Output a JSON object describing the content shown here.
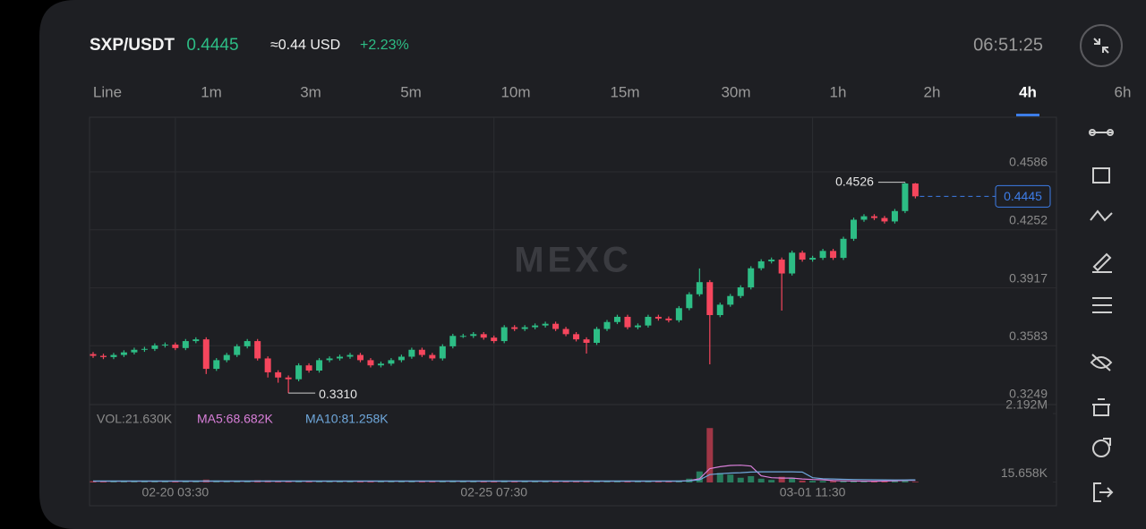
{
  "header": {
    "pair": "SXP/USDT",
    "price": "0.4445",
    "usd": "≈0.44 USD",
    "change": "+2.23%",
    "time": "06:51:25"
  },
  "timeframes": [
    "Line",
    "1m",
    "3m",
    "5m",
    "10m",
    "15m",
    "30m",
    "1h",
    "2h",
    "4h",
    "6h"
  ],
  "active_timeframe": 9,
  "watermark": "MEXC",
  "chart_data": {
    "type": "candlestick",
    "up_color": "#2dbd85",
    "down_color": "#f6465d",
    "ylim": [
      0.3249,
      0.4901
    ],
    "yticks": [
      0.4586,
      0.4252,
      0.3917,
      0.3583,
      0.3249
    ],
    "grid": true,
    "high_label": "0.4526",
    "low_label": "0.3310",
    "x": [
      null,
      null,
      null,
      null,
      null,
      null,
      null,
      null,
      "02-20 03:30",
      null,
      null,
      null,
      null,
      null,
      null,
      null,
      null,
      null,
      null,
      null,
      null,
      null,
      null,
      null,
      null,
      null,
      null,
      null,
      null,
      null,
      null,
      null,
      null,
      null,
      null,
      null,
      null,
      null,
      null,
      "02-25 07:30",
      null,
      null,
      null,
      null,
      null,
      null,
      null,
      null,
      null,
      null,
      null,
      null,
      null,
      null,
      null,
      null,
      null,
      null,
      null,
      null,
      null,
      null,
      null,
      null,
      null,
      null,
      null,
      null,
      null,
      null,
      "03-01 11:30",
      null,
      null,
      null,
      null,
      null,
      null,
      null,
      null,
      null,
      null
    ],
    "open": [
      0.3535,
      0.3525,
      0.3518,
      0.353,
      0.3545,
      0.356,
      0.3565,
      0.3585,
      0.359,
      0.357,
      0.361,
      0.362,
      0.345,
      0.35,
      0.353,
      0.358,
      0.361,
      0.351,
      0.343,
      0.34,
      0.339,
      0.347,
      0.344,
      0.35,
      0.351,
      0.352,
      0.353,
      0.35,
      0.347,
      0.348,
      0.35,
      0.352,
      0.356,
      0.353,
      0.351,
      0.358,
      0.364,
      0.364,
      0.365,
      0.363,
      0.361,
      0.369,
      0.368,
      0.369,
      0.37,
      0.371,
      0.368,
      0.365,
      0.362,
      0.36,
      0.368,
      0.372,
      0.375,
      0.369,
      0.37,
      0.375,
      0.374,
      0.373,
      0.38,
      0.388,
      0.395,
      0.376,
      0.382,
      0.387,
      0.392,
      0.403,
      0.407,
      0.408,
      0.4,
      0.412,
      0.408,
      0.409,
      0.413,
      0.409,
      0.42,
      0.431,
      0.433,
      0.432,
      0.43,
      0.436,
      0.4519
    ],
    "high": [
      0.3547,
      0.3537,
      0.3542,
      0.3557,
      0.3572,
      0.3577,
      0.3597,
      0.3602,
      0.3602,
      0.3622,
      0.3632,
      0.3632,
      0.3512,
      0.3542,
      0.3592,
      0.3622,
      0.3622,
      0.3522,
      0.3442,
      0.3412,
      0.3482,
      0.3482,
      0.3512,
      0.3522,
      0.3532,
      0.3542,
      0.3542,
      0.3512,
      0.3492,
      0.3512,
      0.3532,
      0.3572,
      0.3572,
      0.3542,
      0.3592,
      0.3652,
      0.3652,
      0.3662,
      0.3662,
      0.3642,
      0.3702,
      0.3702,
      0.3702,
      0.3712,
      0.3722,
      0.3722,
      0.3692,
      0.3662,
      0.3632,
      0.3692,
      0.3732,
      0.3762,
      0.3762,
      0.3712,
      0.3762,
      0.3762,
      0.3752,
      0.3812,
      0.3892,
      0.4029,
      0.3962,
      0.3832,
      0.3882,
      0.3932,
      0.4042,
      0.4082,
      0.4092,
      0.4092,
      0.4132,
      0.4132,
      0.4102,
      0.4142,
      0.4142,
      0.4212,
      0.4322,
      0.4342,
      0.4342,
      0.4332,
      0.4372,
      0.4526,
      0.4522
    ],
    "low": [
      0.3513,
      0.3506,
      0.3506,
      0.3518,
      0.3533,
      0.3548,
      0.3553,
      0.3573,
      0.3558,
      0.3558,
      0.3598,
      0.342,
      0.3438,
      0.3488,
      0.3518,
      0.3568,
      0.3498,
      0.34,
      0.337,
      0.331,
      0.3378,
      0.3428,
      0.3428,
      0.3488,
      0.3498,
      0.3508,
      0.3488,
      0.3458,
      0.3458,
      0.3468,
      0.3488,
      0.3508,
      0.3518,
      0.3498,
      0.3498,
      0.3568,
      0.3628,
      0.3628,
      0.3618,
      0.3598,
      0.3598,
      0.3668,
      0.3668,
      0.3678,
      0.3688,
      0.3668,
      0.3638,
      0.3608,
      0.3538,
      0.3588,
      0.3668,
      0.3708,
      0.3678,
      0.3678,
      0.3688,
      0.3728,
      0.3718,
      0.3718,
      0.3788,
      0.3868,
      0.3476,
      0.3748,
      0.3808,
      0.3858,
      0.3908,
      0.4018,
      0.4058,
      0.3786,
      0.3988,
      0.4068,
      0.4068,
      0.4078,
      0.4078,
      0.4078,
      0.4188,
      0.4298,
      0.4308,
      0.4288,
      0.4288,
      0.4348,
      0.4433
    ],
    "close": [
      0.3525,
      0.3518,
      0.353,
      0.3545,
      0.356,
      0.3565,
      0.3585,
      0.359,
      0.357,
      0.361,
      0.362,
      0.345,
      0.35,
      0.353,
      0.358,
      0.361,
      0.351,
      0.343,
      0.34,
      0.339,
      0.347,
      0.344,
      0.35,
      0.351,
      0.352,
      0.353,
      0.35,
      0.347,
      0.348,
      0.35,
      0.352,
      0.356,
      0.353,
      0.351,
      0.358,
      0.364,
      0.364,
      0.365,
      0.363,
      0.361,
      0.369,
      0.368,
      0.369,
      0.37,
      0.371,
      0.368,
      0.365,
      0.362,
      0.36,
      0.368,
      0.372,
      0.375,
      0.369,
      0.37,
      0.375,
      0.374,
      0.373,
      0.38,
      0.388,
      0.395,
      0.376,
      0.382,
      0.387,
      0.392,
      0.403,
      0.407,
      0.408,
      0.4,
      0.412,
      0.408,
      0.409,
      0.413,
      0.409,
      0.42,
      0.431,
      0.433,
      0.432,
      0.43,
      0.436,
      0.4519,
      0.4445
    ],
    "volume_title": "VOL:21.630K",
    "ma5_title": "MA5:68.682K",
    "ma10_title": "MA10:81.258K",
    "ma5_color": "#d97fd9",
    "ma10_color": "#6fa8dc",
    "vylim": [
      0,
      2192000
    ],
    "vyticks": [
      {
        "value": 2192000,
        "label": "2.192M"
      },
      {
        "value": 15658,
        "label": "15.658K"
      }
    ],
    "volume": [
      40000,
      35000,
      30000,
      45000,
      50000,
      38000,
      42000,
      36000,
      55000,
      48000,
      40000,
      90000,
      60000,
      45000,
      40000,
      35000,
      70000,
      65000,
      50000,
      40000,
      60000,
      45000,
      38000,
      35000,
      30000,
      32000,
      40000,
      45000,
      38000,
      36000,
      42000,
      50000,
      40000,
      38000,
      55000,
      60000,
      40000,
      35000,
      38000,
      42000,
      60000,
      40000,
      35000,
      32000,
      30000,
      42000,
      48000,
      52000,
      60000,
      55000,
      45000,
      48000,
      52000,
      38000,
      40000,
      50000,
      42000,
      60000,
      120000,
      350000,
      1730000,
      300000,
      250000,
      150000,
      200000,
      120000,
      80000,
      180000,
      150000,
      60000,
      50000,
      45000,
      40000,
      55000,
      60000,
      45000,
      38000,
      35000,
      50000,
      90000,
      21630
    ],
    "ma5": [
      40000,
      40000,
      40000,
      40000,
      40000,
      40000,
      40000,
      40000,
      40000,
      40000,
      40000,
      40000,
      40000,
      40000,
      40000,
      40000,
      40000,
      40000,
      40000,
      40000,
      40000,
      40000,
      40000,
      40000,
      40000,
      40000,
      40000,
      40000,
      40000,
      40000,
      40000,
      40000,
      40000,
      40000,
      40000,
      40000,
      40000,
      40000,
      40000,
      40000,
      40000,
      40000,
      40000,
      40000,
      40000,
      40000,
      40000,
      40000,
      40000,
      40000,
      40000,
      40000,
      40000,
      40000,
      40000,
      40000,
      40000,
      40000,
      56000,
      118000,
      440000,
      500000,
      540000,
      550000,
      520000,
      210000,
      150000,
      140000,
      140000,
      110000,
      95000,
      85000,
      60000,
      50000,
      45000,
      42000,
      40000,
      45000,
      55000,
      62000,
      68682
    ],
    "ma10": [
      45000,
      45000,
      45000,
      45000,
      45000,
      45000,
      45000,
      45000,
      45000,
      45000,
      45000,
      45000,
      45000,
      45000,
      45000,
      45000,
      45000,
      45000,
      45000,
      45000,
      45000,
      45000,
      45000,
      45000,
      45000,
      45000,
      45000,
      45000,
      45000,
      45000,
      45000,
      45000,
      45000,
      45000,
      45000,
      45000,
      45000,
      45000,
      45000,
      45000,
      45000,
      45000,
      45000,
      45000,
      45000,
      45000,
      45000,
      45000,
      45000,
      45000,
      45000,
      45000,
      45000,
      45000,
      45000,
      45000,
      45000,
      45000,
      50000,
      80000,
      250000,
      280000,
      300000,
      310000,
      330000,
      340000,
      340000,
      340000,
      340000,
      330000,
      150000,
      120000,
      110000,
      100000,
      95000,
      90000,
      85000,
      82000,
      80000,
      80000,
      81258
    ]
  }
}
